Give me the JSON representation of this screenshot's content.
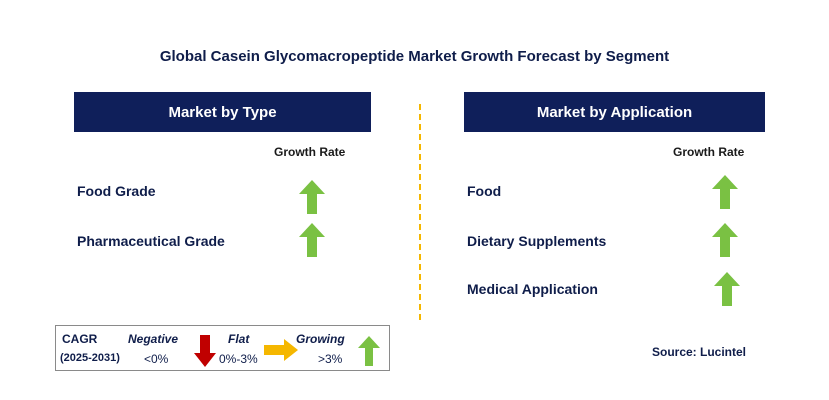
{
  "title": "Global Casein Glycomacropeptide Market Growth Forecast by Segment",
  "type_panel": {
    "header": "Market by Type",
    "growth_label": "Growth Rate",
    "rows": [
      {
        "label": "Food Grade",
        "trend": "growing"
      },
      {
        "label": "Pharmaceutical Grade",
        "trend": "growing"
      }
    ]
  },
  "application_panel": {
    "header": "Market by Application",
    "growth_label": "Growth Rate",
    "rows": [
      {
        "label": "Food",
        "trend": "growing"
      },
      {
        "label": "Dietary Supplements",
        "trend": "growing"
      },
      {
        "label": "Medical Application",
        "trend": "growing"
      }
    ]
  },
  "legend": {
    "cagr": "CAGR",
    "period": "(2025-2031)",
    "negative": {
      "label": "Negative",
      "range": "<0%",
      "color": "#c00000"
    },
    "flat": {
      "label": "Flat",
      "range": "0%-3%",
      "color": "#f5b700"
    },
    "growing": {
      "label": "Growing",
      "range": ">3%",
      "color": "#7ac143"
    }
  },
  "source": "Source: Lucintel",
  "colors": {
    "header_bg": "#0f1f5a",
    "divider": "#f5b700",
    "up_arrow": "#7ac143"
  }
}
